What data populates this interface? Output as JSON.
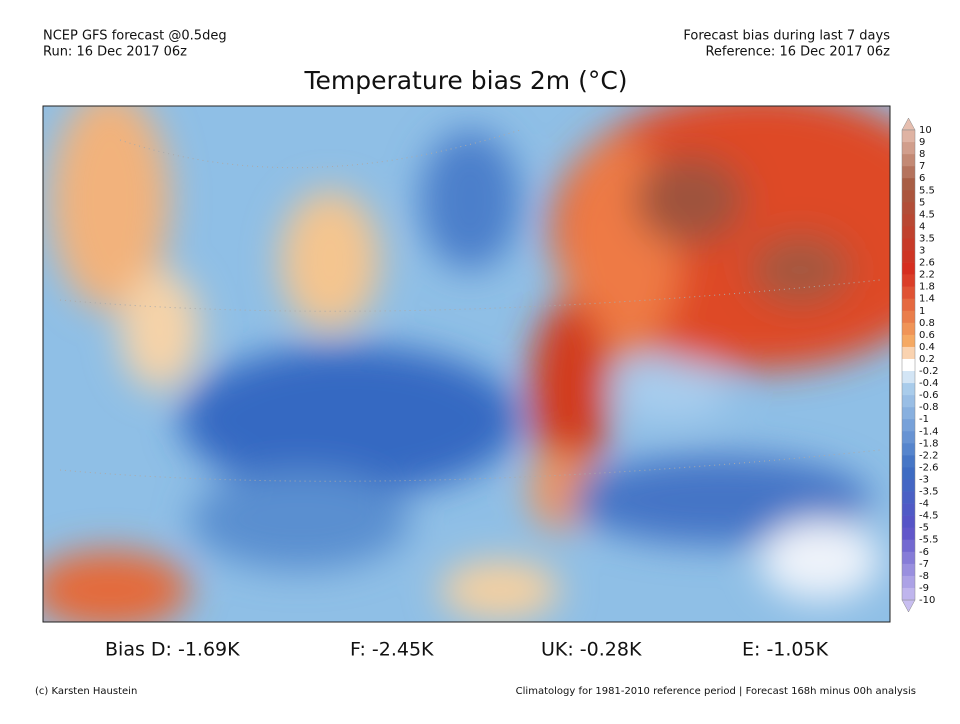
{
  "header": {
    "left": [
      "NCEP GFS forecast @0.5deg",
      "Run: 16 Dec 2017 06z"
    ],
    "right": [
      "Forecast bias during last 7 days",
      "Reference: 16 Dec 2017 06z"
    ],
    "title": "Temperature bias 2m (°C)"
  },
  "colorbar": {
    "labels": [
      "10",
      "9",
      "8",
      "7",
      "6",
      "5.5",
      "5",
      "4.5",
      "4",
      "3.5",
      "3",
      "2.6",
      "2.2",
      "1.8",
      "1.4",
      "1",
      "0.8",
      "0.6",
      "0.4",
      "0.2",
      "-0.2",
      "-0.4",
      "-0.6",
      "-0.8",
      "-1",
      "-1.4",
      "-1.8",
      "-2.2",
      "-2.6",
      "-3",
      "-3.5",
      "-4",
      "-4.5",
      "-5",
      "-5.5",
      "-6",
      "-7",
      "-8",
      "-9",
      "-10"
    ]
  },
  "stats": [
    "Bias D: -1.69K",
    "F: -2.45K",
    "UK: -0.28K",
    "E: -1.05K"
  ],
  "footer": {
    "left": "(c) Karsten Haustein",
    "right": "Climatology for 1981-2010 reference period | Forecast 168h minus 00h analysis"
  }
}
